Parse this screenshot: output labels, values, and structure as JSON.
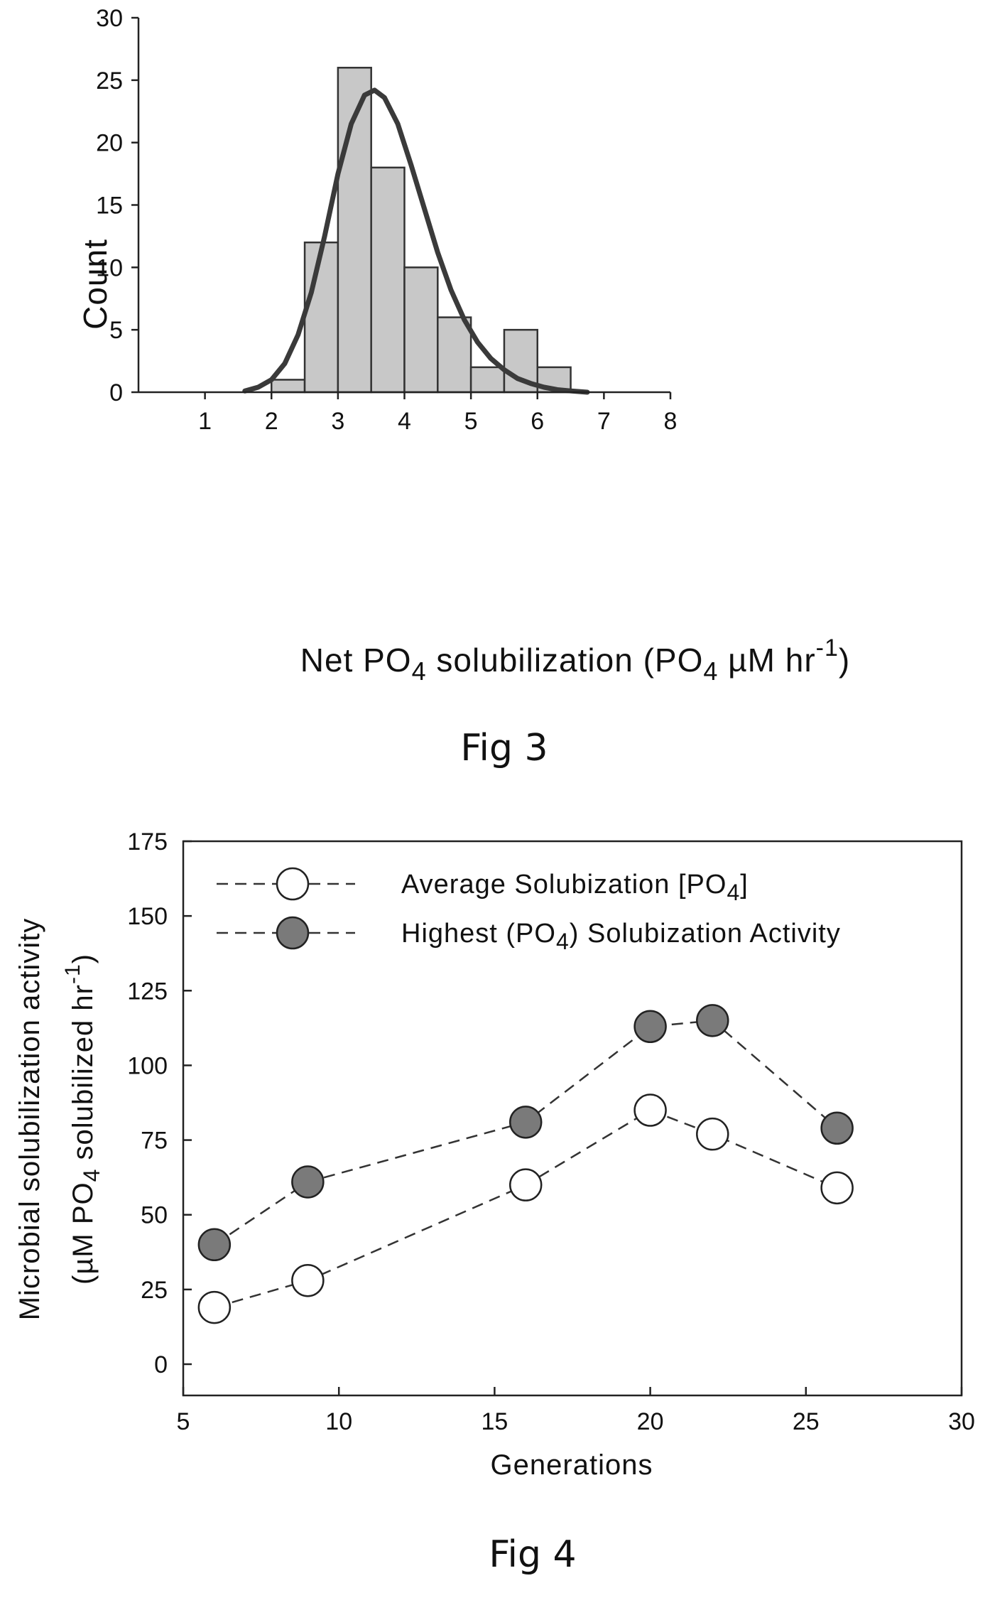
{
  "chart_data": [
    {
      "type": "bar",
      "caption": "Fig 3",
      "xlabel_parts": {
        "a": "Net PO",
        "b": "4",
        "c": " solubilization (PO",
        "d": "4",
        "e": " µM hr",
        "f": "-1",
        "g": ")"
      },
      "ylabel": "Count",
      "xlim": [
        0,
        8
      ],
      "ylim": [
        0,
        30
      ],
      "xticks": [
        1,
        2,
        3,
        4,
        5,
        6,
        7,
        8
      ],
      "yticks": [
        0,
        5,
        10,
        15,
        20,
        25,
        30
      ],
      "bin_width": 0.5,
      "bins": [
        {
          "x0": 2.0,
          "count": 1
        },
        {
          "x0": 2.5,
          "count": 12
        },
        {
          "x0": 3.0,
          "count": 26
        },
        {
          "x0": 3.5,
          "count": 18
        },
        {
          "x0": 4.0,
          "count": 10
        },
        {
          "x0": 4.5,
          "count": 6
        },
        {
          "x0": 5.0,
          "count": 2
        },
        {
          "x0": 5.5,
          "count": 5
        },
        {
          "x0": 6.0,
          "count": 2
        }
      ],
      "fit_curve": {
        "x": [
          1.6,
          1.8,
          2.0,
          2.2,
          2.4,
          2.6,
          2.8,
          3.0,
          3.2,
          3.4,
          3.55,
          3.7,
          3.9,
          4.1,
          4.3,
          4.5,
          4.7,
          4.9,
          5.1,
          5.3,
          5.5,
          5.7,
          5.9,
          6.1,
          6.3,
          6.5,
          6.75
        ],
        "y": [
          0.1,
          0.4,
          1.0,
          2.3,
          4.6,
          8.0,
          12.5,
          17.5,
          21.5,
          23.8,
          24.2,
          23.6,
          21.5,
          18.2,
          14.7,
          11.2,
          8.2,
          5.8,
          4.0,
          2.7,
          1.8,
          1.1,
          0.7,
          0.4,
          0.2,
          0.1,
          0.0
        ]
      }
    },
    {
      "type": "line",
      "caption": "Fig 4",
      "xlabel": "Generations",
      "ylabel_line1": "Microbial solubilization activity",
      "ylabel_line2_parts": {
        "a": "(µM PO",
        "b": "4",
        "c": " solubilized hr",
        "d": "-1",
        "e": ")"
      },
      "xlim": [
        5,
        30
      ],
      "ylim": [
        0,
        175
      ],
      "xticks": [
        5,
        10,
        15,
        20,
        25,
        30
      ],
      "yticks": [
        0,
        25,
        50,
        75,
        100,
        125,
        150,
        175
      ],
      "x": [
        6,
        9,
        16,
        20,
        22,
        26
      ],
      "series": [
        {
          "legend_parts": {
            "a": "Average Solubization [PO",
            "b": "4",
            "c": "]"
          },
          "marker": "open-circle",
          "values": [
            19,
            28,
            60,
            85,
            77,
            59
          ]
        },
        {
          "legend_parts": {
            "a": "Highest (PO",
            "b": "4",
            "c": ") Solubization Activity"
          },
          "marker": "filled-circle",
          "values": [
            40,
            61,
            81,
            113,
            115,
            79
          ]
        }
      ],
      "colors": {
        "open_fill": "#ffffff",
        "filled_fill": "#7a7a7a",
        "stroke": "#222222"
      }
    }
  ],
  "colors": {
    "bar_fill": "#c8c8c8",
    "bar_stroke": "#333333",
    "curve": "#3a3a3a",
    "axis": "#222222"
  }
}
